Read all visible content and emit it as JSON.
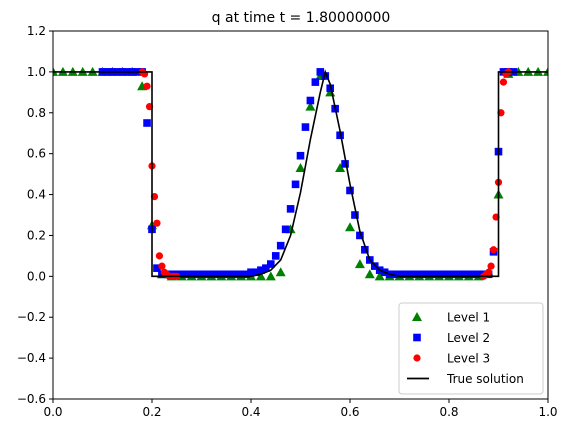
{
  "chart_data": {
    "type": "line",
    "title": "q at time t =     1.80000000",
    "xlabel": "",
    "ylabel": "",
    "xlim": [
      0,
      1
    ],
    "ylim": [
      -0.6,
      1.2
    ],
    "xticks": [
      "0.0",
      "0.2",
      "0.4",
      "0.6",
      "0.8",
      "1.0"
    ],
    "yticks": [
      "1.2",
      "1.0",
      "0.8",
      "0.6",
      "0.4",
      "0.2",
      "0.0",
      "−0.2",
      "−0.4",
      "−0.6"
    ],
    "xtick_values": [
      0,
      0.2,
      0.4,
      0.6,
      0.8,
      1.0
    ],
    "ytick_values": [
      1.2,
      1.0,
      0.8,
      0.6,
      0.4,
      0.2,
      0.0,
      -0.2,
      -0.4,
      -0.6
    ],
    "grid": false,
    "legend_placement": "lower-right",
    "series": [
      {
        "name": "Level 1",
        "marker": "triangle",
        "color": "#008000",
        "x": [
          0.0,
          0.02,
          0.04,
          0.06,
          0.08,
          0.1,
          0.12,
          0.14,
          0.16,
          0.18,
          0.2,
          0.22,
          0.24,
          0.26,
          0.28,
          0.3,
          0.32,
          0.34,
          0.36,
          0.38,
          0.4,
          0.42,
          0.44,
          0.46,
          0.48,
          0.5,
          0.52,
          0.54,
          0.56,
          0.58,
          0.6,
          0.62,
          0.64,
          0.66,
          0.68,
          0.7,
          0.72,
          0.74,
          0.76,
          0.78,
          0.8,
          0.82,
          0.84,
          0.86,
          0.88,
          0.9,
          0.92,
          0.94,
          0.96,
          0.98,
          1.0
        ],
        "y": [
          1.0,
          1.0,
          1.0,
          1.0,
          1.0,
          1.0,
          1.0,
          1.0,
          1.0,
          0.93,
          0.25,
          0.01,
          0.0,
          0.0,
          0.0,
          0.0,
          0.0,
          0.0,
          0.0,
          0.0,
          0.0,
          0.0,
          0.0,
          0.02,
          0.23,
          0.53,
          0.83,
          0.98,
          0.9,
          0.53,
          0.24,
          0.06,
          0.01,
          0.0,
          0.0,
          0.0,
          0.0,
          0.0,
          0.0,
          0.0,
          0.0,
          0.0,
          0.0,
          0.0,
          0.02,
          0.4,
          0.99,
          1.0,
          1.0,
          1.0,
          1.0
        ]
      },
      {
        "name": "Level 2",
        "marker": "square",
        "color": "#0000ff",
        "x": [
          0.1,
          0.11,
          0.12,
          0.13,
          0.14,
          0.15,
          0.16,
          0.17,
          0.18,
          0.19,
          0.2,
          0.21,
          0.22,
          0.23,
          0.24,
          0.25,
          0.26,
          0.27,
          0.28,
          0.29,
          0.3,
          0.31,
          0.32,
          0.33,
          0.34,
          0.35,
          0.36,
          0.37,
          0.38,
          0.39,
          0.4,
          0.41,
          0.42,
          0.43,
          0.44,
          0.45,
          0.46,
          0.47,
          0.48,
          0.49,
          0.5,
          0.51,
          0.52,
          0.53,
          0.54,
          0.55,
          0.56,
          0.57,
          0.58,
          0.59,
          0.6,
          0.61,
          0.62,
          0.63,
          0.64,
          0.65,
          0.66,
          0.67,
          0.68,
          0.69,
          0.7,
          0.71,
          0.72,
          0.73,
          0.74,
          0.75,
          0.76,
          0.77,
          0.78,
          0.79,
          0.8,
          0.81,
          0.82,
          0.83,
          0.84,
          0.85,
          0.86,
          0.87,
          0.88,
          0.89,
          0.9,
          0.91,
          0.92,
          0.93
        ],
        "y": [
          1.0,
          1.0,
          1.0,
          1.0,
          1.0,
          1.0,
          1.0,
          1.0,
          1.0,
          0.75,
          0.23,
          0.04,
          0.01,
          0.01,
          0.01,
          0.01,
          0.01,
          0.01,
          0.01,
          0.01,
          0.01,
          0.01,
          0.01,
          0.01,
          0.01,
          0.01,
          0.01,
          0.01,
          0.01,
          0.01,
          0.02,
          0.02,
          0.03,
          0.04,
          0.06,
          0.1,
          0.15,
          0.23,
          0.33,
          0.45,
          0.59,
          0.73,
          0.86,
          0.95,
          1.0,
          0.98,
          0.92,
          0.82,
          0.69,
          0.55,
          0.42,
          0.3,
          0.2,
          0.13,
          0.08,
          0.05,
          0.03,
          0.02,
          0.01,
          0.01,
          0.01,
          0.01,
          0.01,
          0.01,
          0.01,
          0.01,
          0.01,
          0.01,
          0.01,
          0.01,
          0.01,
          0.01,
          0.01,
          0.01,
          0.01,
          0.01,
          0.01,
          0.01,
          0.01,
          0.12,
          0.61,
          1.0,
          1.0,
          1.0
        ]
      },
      {
        "name": "Level 3",
        "marker": "circle",
        "color": "#ff0000",
        "x": [
          0.18,
          0.185,
          0.19,
          0.195,
          0.2,
          0.205,
          0.21,
          0.215,
          0.22,
          0.225,
          0.23,
          0.235,
          0.24,
          0.245,
          0.25,
          0.87,
          0.875,
          0.88,
          0.885,
          0.89,
          0.895,
          0.9,
          0.905,
          0.91,
          0.915,
          0.92
        ],
        "y": [
          1.0,
          0.99,
          0.93,
          0.83,
          0.54,
          0.39,
          0.26,
          0.1,
          0.05,
          0.02,
          0.01,
          0.0,
          0.0,
          0.0,
          0.0,
          0.0,
          0.01,
          0.02,
          0.05,
          0.13,
          0.29,
          0.46,
          0.8,
          0.95,
          0.99,
          1.0
        ]
      },
      {
        "name": "True solution",
        "marker": "line",
        "color": "#000000",
        "x": [
          0.0,
          0.2,
          0.2,
          0.4,
          0.42,
          0.44,
          0.46,
          0.48,
          0.5,
          0.52,
          0.54,
          0.55,
          0.56,
          0.58,
          0.6,
          0.62,
          0.64,
          0.66,
          0.68,
          0.7,
          0.9,
          0.9,
          1.0
        ],
        "y": [
          1.0,
          1.0,
          0.0,
          0.0,
          0.01,
          0.03,
          0.08,
          0.2,
          0.41,
          0.67,
          0.9,
          1.0,
          0.94,
          0.71,
          0.45,
          0.22,
          0.08,
          0.03,
          0.01,
          0.0,
          0.0,
          1.0,
          1.0
        ]
      }
    ]
  }
}
